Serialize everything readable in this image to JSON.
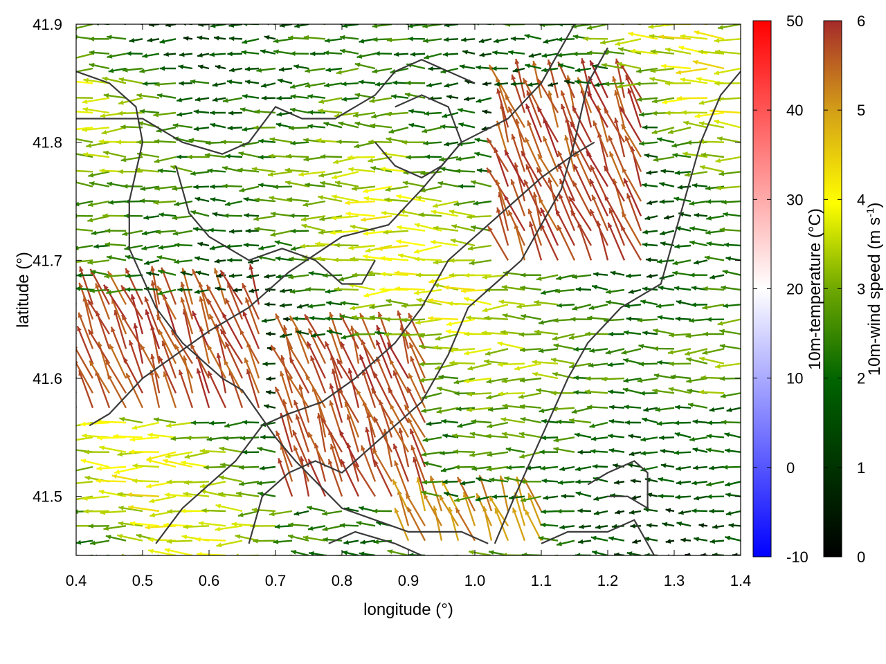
{
  "chart_data": {
    "type": "vector-field",
    "xlabel": "longitude (°)",
    "ylabel": "latitude (°)",
    "xlim": [
      0.4,
      1.4
    ],
    "ylim": [
      41.45,
      41.9
    ],
    "x_ticks": [
      "0.4",
      "0.5",
      "0.6",
      "0.7",
      "0.8",
      "0.9",
      "1.0",
      "1.1",
      "1.2",
      "1.3",
      "1.4"
    ],
    "y_ticks": [
      "41.5",
      "41.6",
      "41.7",
      "41.8",
      "41.9"
    ],
    "temperature_colorbar": {
      "label": "10m-temperature (°C)",
      "range": [
        -10,
        50
      ],
      "ticks": [
        "-10",
        "0",
        "10",
        "20",
        "30",
        "40",
        "50"
      ],
      "colors": [
        "#0000ff",
        "#ffffff",
        "#ff0000"
      ]
    },
    "wind_colorbar": {
      "label": "10m-wind speed (m s-1)",
      "label_main": "10m-wind speed (m s",
      "label_sup": "-1",
      "label_end": ")",
      "range": [
        0,
        6
      ],
      "ticks": [
        "0",
        "1",
        "2",
        "3",
        "4",
        "5",
        "6"
      ],
      "colors": [
        "#000000",
        "#006400",
        "#ffff00",
        "#d4a017",
        "#a52a2a"
      ]
    },
    "wind_field_grid": {
      "lon_step": 0.025,
      "lat_step": 0.0125,
      "dominant_direction": "from east (arrows pointing west)",
      "strong_wind_zones": [
        {
          "lon": [
            0.4,
            0.7
          ],
          "lat": [
            41.57,
            41.67
          ],
          "speed": 6
        },
        {
          "lon": [
            0.72,
            0.95
          ],
          "lat": [
            41.5,
            41.63
          ],
          "speed": 6
        },
        {
          "lon": [
            1.05,
            1.25
          ],
          "lat": [
            41.7,
            41.85
          ],
          "speed": 6
        },
        {
          "lon": [
            0.9,
            1.1
          ],
          "lat": [
            41.46,
            41.5
          ],
          "speed": 5.5
        }
      ]
    },
    "coastlines": [
      [
        [
          0.4,
          41.86
        ],
        [
          0.45,
          41.85
        ],
        [
          0.49,
          41.83
        ],
        [
          0.5,
          41.8
        ],
        [
          0.48,
          41.75
        ],
        [
          0.48,
          41.71
        ],
        [
          0.52,
          41.66
        ],
        [
          0.56,
          41.63
        ],
        [
          0.62,
          41.6
        ],
        [
          0.65,
          41.59
        ],
        [
          0.7,
          41.55
        ],
        [
          0.73,
          41.53
        ],
        [
          0.8,
          41.49
        ],
        [
          0.85,
          41.48
        ],
        [
          0.9,
          41.47
        ],
        [
          0.98,
          41.47
        ],
        [
          1.02,
          41.46
        ]
      ],
      [
        [
          0.42,
          41.56
        ],
        [
          0.45,
          41.57
        ],
        [
          0.5,
          41.6
        ],
        [
          0.55,
          41.62
        ],
        [
          0.6,
          41.64
        ],
        [
          0.66,
          41.66
        ],
        [
          0.72,
          41.69
        ],
        [
          0.8,
          41.72
        ],
        [
          0.87,
          41.73
        ],
        [
          0.92,
          41.76
        ],
        [
          0.98,
          41.8
        ],
        [
          1.05,
          41.82
        ],
        [
          1.1,
          41.85
        ],
        [
          1.13,
          41.88
        ],
        [
          1.15,
          41.9
        ]
      ],
      [
        [
          0.52,
          41.46
        ],
        [
          0.56,
          41.49
        ],
        [
          0.6,
          41.51
        ],
        [
          0.64,
          41.53
        ],
        [
          0.68,
          41.56
        ],
        [
          0.72,
          41.57
        ],
        [
          0.77,
          41.58
        ],
        [
          0.82,
          41.6
        ],
        [
          0.88,
          41.63
        ],
        [
          0.92,
          41.66
        ],
        [
          0.96,
          41.7
        ],
        [
          1.0,
          41.72
        ],
        [
          1.06,
          41.75
        ],
        [
          1.1,
          41.77
        ],
        [
          1.15,
          41.79
        ],
        [
          1.18,
          41.8
        ]
      ],
      [
        [
          0.66,
          41.46
        ],
        [
          0.68,
          41.5
        ],
        [
          0.72,
          41.52
        ],
        [
          0.76,
          41.53
        ],
        [
          0.8,
          41.52
        ],
        [
          0.84,
          41.54
        ],
        [
          0.88,
          41.56
        ],
        [
          0.92,
          41.58
        ],
        [
          0.96,
          41.62
        ],
        [
          0.99,
          41.66
        ],
        [
          1.03,
          41.68
        ],
        [
          1.07,
          41.7
        ],
        [
          1.1,
          41.73
        ],
        [
          1.13,
          41.76
        ],
        [
          1.15,
          41.8
        ],
        [
          1.17,
          41.85
        ],
        [
          1.2,
          41.88
        ]
      ],
      [
        [
          1.03,
          41.46
        ],
        [
          1.06,
          41.5
        ],
        [
          1.1,
          41.55
        ],
        [
          1.14,
          41.6
        ],
        [
          1.17,
          41.63
        ],
        [
          1.22,
          41.66
        ],
        [
          1.28,
          41.68
        ],
        [
          1.3,
          41.72
        ],
        [
          1.32,
          41.76
        ],
        [
          1.34,
          41.8
        ],
        [
          1.37,
          41.84
        ],
        [
          1.4,
          41.86
        ]
      ],
      [
        [
          0.4,
          41.82
        ],
        [
          0.5,
          41.82
        ],
        [
          0.56,
          41.8
        ],
        [
          0.62,
          41.79
        ],
        [
          0.66,
          41.8
        ],
        [
          0.7,
          41.83
        ],
        [
          0.74,
          41.82
        ],
        [
          0.79,
          41.82
        ],
        [
          0.85,
          41.84
        ],
        [
          0.88,
          41.86
        ],
        [
          0.92,
          41.87
        ],
        [
          0.96,
          41.86
        ],
        [
          1.0,
          41.85
        ]
      ],
      [
        [
          0.55,
          41.78
        ],
        [
          0.57,
          41.74
        ],
        [
          0.6,
          41.72
        ],
        [
          0.66,
          41.7
        ],
        [
          0.71,
          41.71
        ],
        [
          0.76,
          41.7
        ],
        [
          0.8,
          41.68
        ],
        [
          0.83,
          41.68
        ],
        [
          0.85,
          41.7
        ]
      ],
      [
        [
          0.85,
          41.8
        ],
        [
          0.88,
          41.78
        ],
        [
          0.92,
          41.77
        ],
        [
          0.95,
          41.78
        ],
        [
          0.98,
          41.8
        ],
        [
          0.96,
          41.83
        ],
        [
          0.92,
          41.84
        ],
        [
          0.88,
          41.83
        ]
      ],
      [
        [
          1.17,
          41.51
        ],
        [
          1.2,
          41.52
        ],
        [
          1.24,
          41.53
        ],
        [
          1.26,
          41.52
        ],
        [
          1.26,
          41.49
        ],
        [
          1.23,
          41.5
        ],
        [
          1.2,
          41.5
        ]
      ],
      [
        [
          0.78,
          41.46
        ],
        [
          0.82,
          41.47
        ],
        [
          0.88,
          41.46
        ],
        [
          0.92,
          41.45
        ]
      ],
      [
        [
          1.1,
          41.46
        ],
        [
          1.14,
          41.47
        ],
        [
          1.2,
          41.47
        ],
        [
          1.24,
          41.48
        ],
        [
          1.27,
          41.45
        ]
      ]
    ]
  }
}
